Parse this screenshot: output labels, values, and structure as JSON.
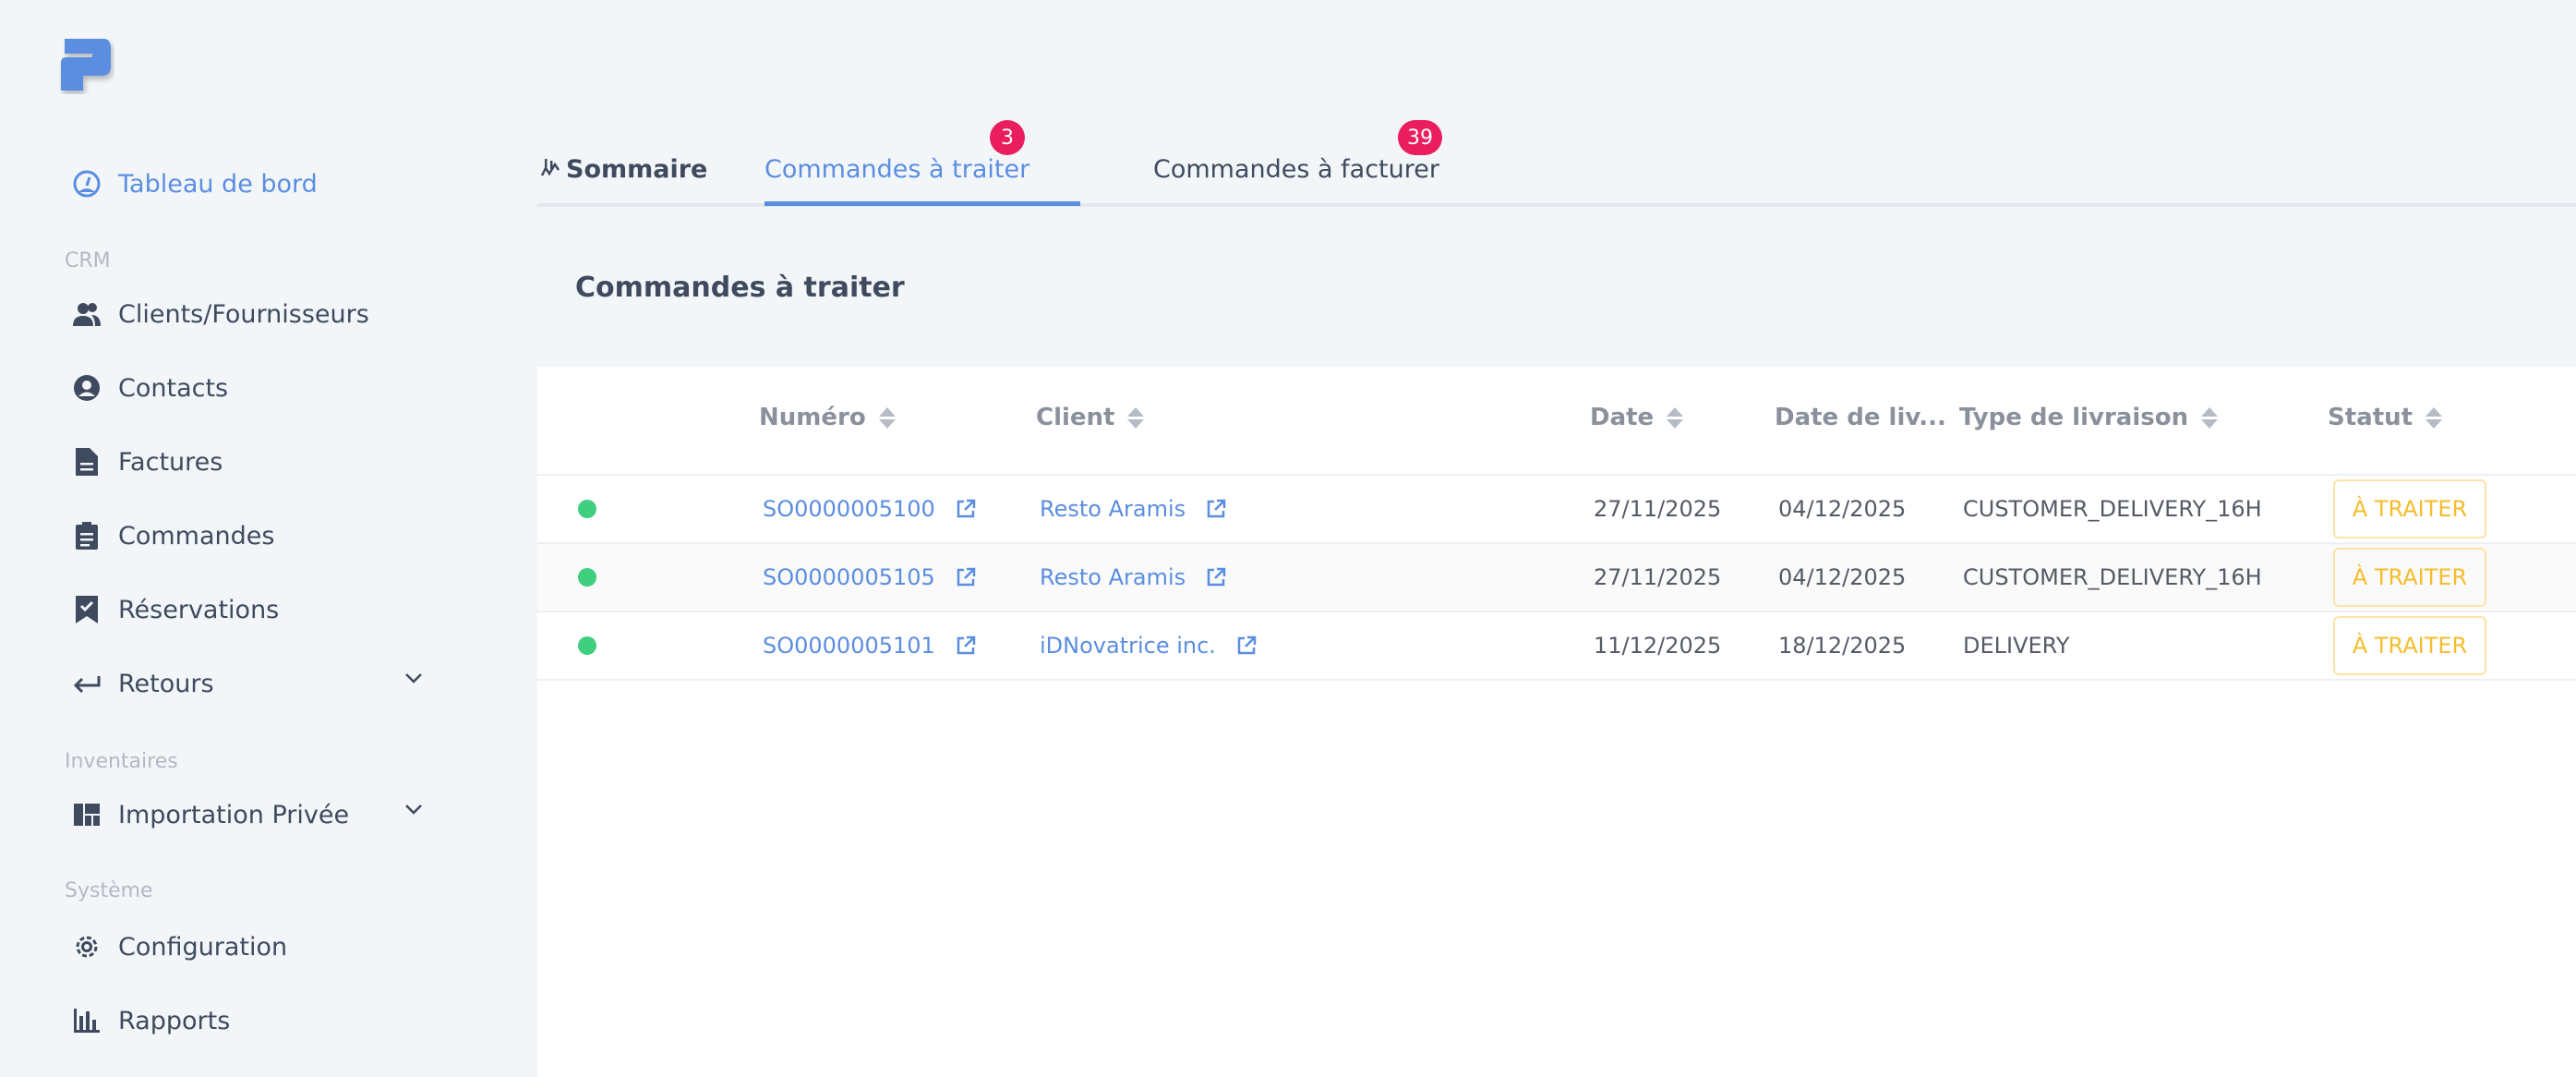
{
  "colors": {
    "accent": "#5b8ee0",
    "badge": "#ea1e5f",
    "status_ok": "#3fcf7f",
    "status_pending": "#f6bd2c"
  },
  "sidebar": {
    "dashboard": "Tableau de bord",
    "sections": {
      "crm": "CRM",
      "inventaires": "Inventaires",
      "systeme": "Système"
    },
    "items": [
      {
        "label": "Clients/Fournisseurs",
        "icon": "users-icon"
      },
      {
        "label": "Contacts",
        "icon": "user-circle-icon"
      },
      {
        "label": "Factures",
        "icon": "file-icon"
      },
      {
        "label": "Commandes",
        "icon": "clipboard-icon"
      },
      {
        "label": "Réservations",
        "icon": "bookmark-check-icon"
      },
      {
        "label": "Retours",
        "icon": "arrow-left-icon"
      },
      {
        "label": "Importation Privée",
        "icon": "layout-icon"
      },
      {
        "label": "Configuration",
        "icon": "gear-icon"
      },
      {
        "label": "Rapports",
        "icon": "bar-chart-icon"
      }
    ]
  },
  "tabs": [
    {
      "label": "Sommaire"
    },
    {
      "label": "Commandes à traiter",
      "badge": "3"
    },
    {
      "label": "Commandes à facturer",
      "badge": "39"
    }
  ],
  "section_title": "Commandes à traiter",
  "table": {
    "columns": [
      "Numéro",
      "Client",
      "Date",
      "Date de liv...",
      "Type de livraison",
      "Statut"
    ],
    "rows": [
      {
        "numero": "SO0000005100",
        "client": "Resto Aramis",
        "date": "27/11/2025",
        "livraison": "04/12/2025",
        "type": "CUSTOMER_DELIVERY_16H",
        "statut": "À TRAITER"
      },
      {
        "numero": "SO0000005105",
        "client": "Resto Aramis",
        "date": "27/11/2025",
        "livraison": "04/12/2025",
        "type": "CUSTOMER_DELIVERY_16H",
        "statut": "À TRAITER"
      },
      {
        "numero": "SO0000005101",
        "client": "iDNovatrice inc.",
        "date": "11/12/2025",
        "livraison": "18/12/2025",
        "type": "DELIVERY",
        "statut": "À TRAITER"
      }
    ]
  }
}
